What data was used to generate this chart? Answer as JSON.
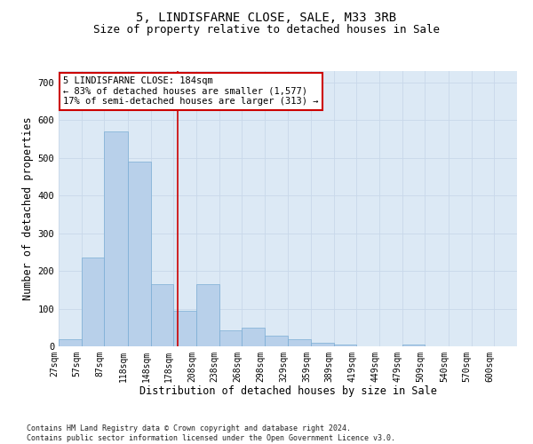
{
  "title1": "5, LINDISFARNE CLOSE, SALE, M33 3RB",
  "title2": "Size of property relative to detached houses in Sale",
  "xlabel": "Distribution of detached houses by size in Sale",
  "ylabel": "Number of detached properties",
  "bar_color": "#b8d0ea",
  "bar_edgecolor": "#7aadd4",
  "grid_color": "#c8d8ea",
  "background_color": "#dce9f5",
  "bin_edges": [
    27,
    57,
    87,
    118,
    148,
    178,
    208,
    238,
    268,
    298,
    329,
    359,
    389,
    419,
    449,
    479,
    509,
    540,
    570,
    600,
    630
  ],
  "bar_heights": [
    20,
    235,
    570,
    490,
    165,
    95,
    165,
    43,
    50,
    28,
    20,
    10,
    5,
    0,
    0,
    5,
    0,
    0,
    0,
    0
  ],
  "property_size": 184,
  "vline_color": "#cc0000",
  "annotation_text": "5 LINDISFARNE CLOSE: 184sqm\n← 83% of detached houses are smaller (1,577)\n17% of semi-detached houses are larger (313) →",
  "annotation_box_color": "white",
  "annotation_box_edgecolor": "#cc0000",
  "ylim": [
    0,
    730
  ],
  "yticks": [
    0,
    100,
    200,
    300,
    400,
    500,
    600,
    700
  ],
  "footnote": "Contains HM Land Registry data © Crown copyright and database right 2024.\nContains public sector information licensed under the Open Government Licence v3.0.",
  "title1_fontsize": 10,
  "title2_fontsize": 9,
  "label_fontsize": 8.5,
  "tick_fontsize": 7,
  "annot_fontsize": 7.5
}
